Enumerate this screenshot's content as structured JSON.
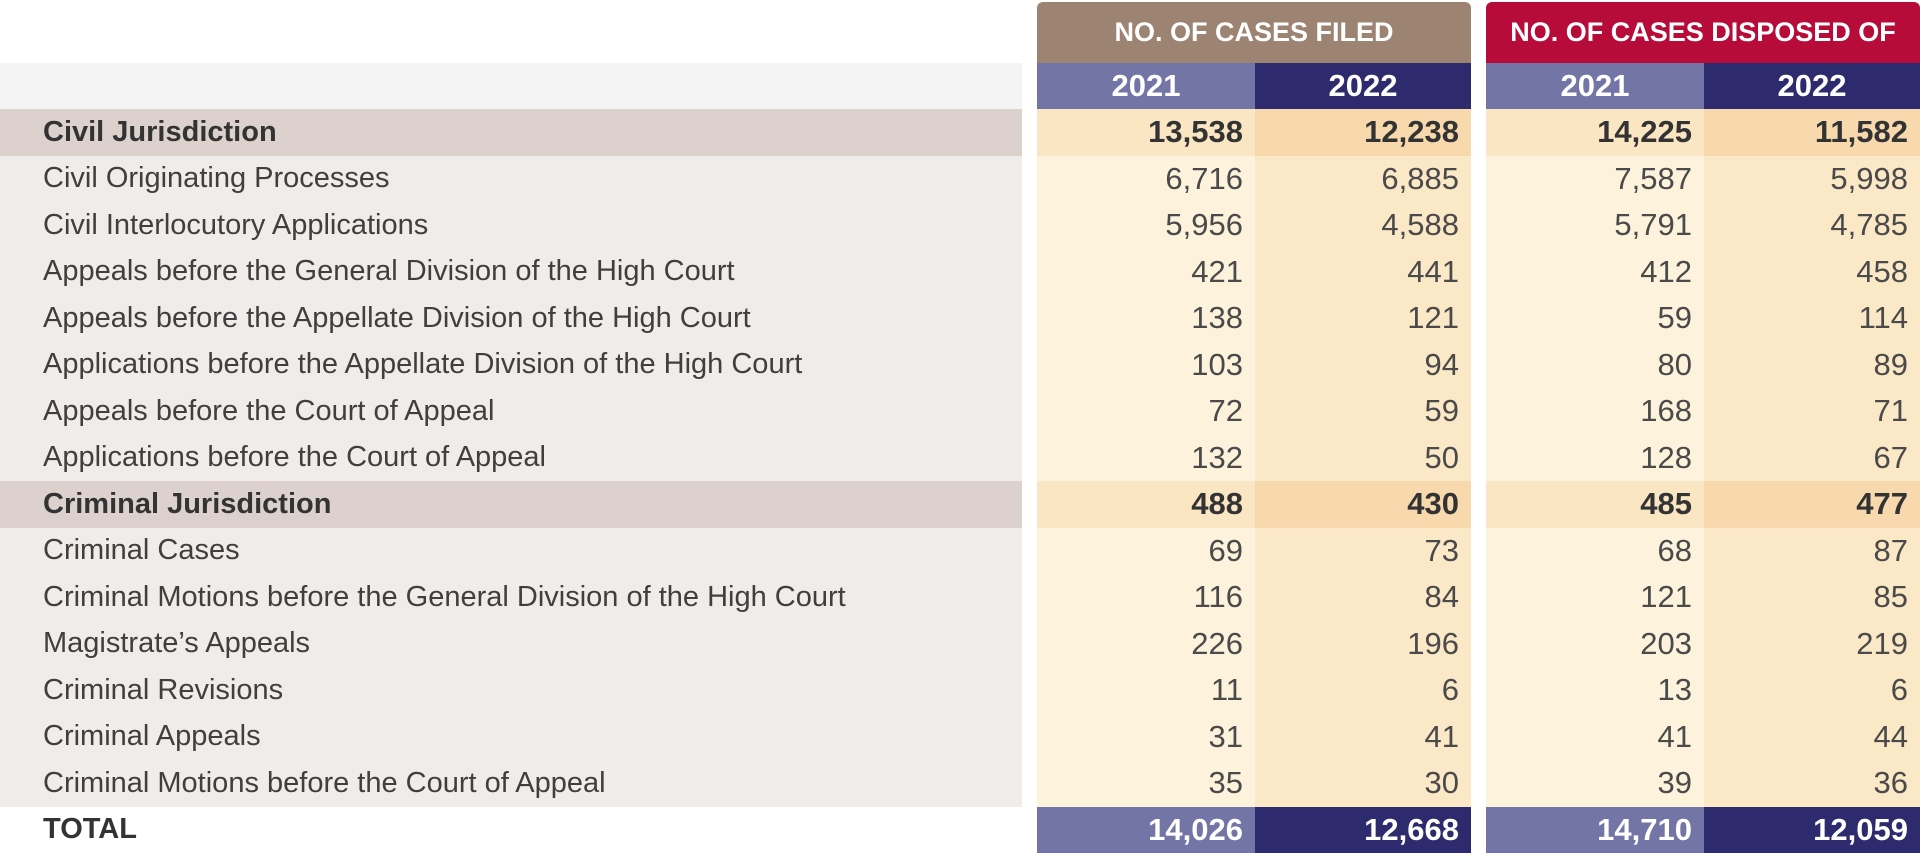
{
  "headers": {
    "filed": "NO. OF CASES FILED",
    "disposed": "NO. OF CASES DISPOSED OF",
    "years": [
      "2021",
      "2022"
    ]
  },
  "rows": [
    {
      "label": "Civil Jurisdiction",
      "filed_2021": "13,538",
      "filed_2022": "12,238",
      "disposed_2021": "14,225",
      "disposed_2022": "11,582"
    },
    {
      "label": "Civil Originating Processes",
      "filed_2021": "6,716",
      "filed_2022": "6,885",
      "disposed_2021": "7,587",
      "disposed_2022": "5,998"
    },
    {
      "label": "Civil Interlocutory Applications",
      "filed_2021": "5,956",
      "filed_2022": "4,588",
      "disposed_2021": "5,791",
      "disposed_2022": "4,785"
    },
    {
      "label": "Appeals before the General Division of the High Court",
      "filed_2021": "421",
      "filed_2022": "441",
      "disposed_2021": "412",
      "disposed_2022": "458"
    },
    {
      "label": "Appeals before the Appellate Division of the High Court",
      "filed_2021": "138",
      "filed_2022": "121",
      "disposed_2021": "59",
      "disposed_2022": "114"
    },
    {
      "label": "Applications before the Appellate Division of the High Court",
      "filed_2021": "103",
      "filed_2022": "94",
      "disposed_2021": "80",
      "disposed_2022": "89"
    },
    {
      "label": "Appeals before the Court of Appeal",
      "filed_2021": "72",
      "filed_2022": "59",
      "disposed_2021": "168",
      "disposed_2022": "71"
    },
    {
      "label": "Applications before the Court of Appeal",
      "filed_2021": "132",
      "filed_2022": "50",
      "disposed_2021": "128",
      "disposed_2022": "67"
    },
    {
      "label": "Criminal Jurisdiction",
      "filed_2021": "488",
      "filed_2022": "430",
      "disposed_2021": "485",
      "disposed_2022": "477"
    },
    {
      "label": "Criminal Cases",
      "filed_2021": "69",
      "filed_2022": "73",
      "disposed_2021": "68",
      "disposed_2022": "87"
    },
    {
      "label": "Criminal Motions before the General Division of the High Court",
      "filed_2021": "116",
      "filed_2022": "84",
      "disposed_2021": "121",
      "disposed_2022": "85"
    },
    {
      "label": "Magistrate’s Appeals",
      "filed_2021": "226",
      "filed_2022": "196",
      "disposed_2021": "203",
      "disposed_2022": "219"
    },
    {
      "label": "Criminal Revisions",
      "filed_2021": "11",
      "filed_2022": "6",
      "disposed_2021": "13",
      "disposed_2022": "6"
    },
    {
      "label": "Criminal Appeals",
      "filed_2021": "31",
      "filed_2022": "41",
      "disposed_2021": "41",
      "disposed_2022": "44"
    },
    {
      "label": "Criminal Motions before the Court of Appeal",
      "filed_2021": "35",
      "filed_2022": "30",
      "disposed_2021": "39",
      "disposed_2022": "36"
    },
    {
      "label": "TOTAL",
      "filed_2021": "14,026",
      "filed_2022": "12,668",
      "disposed_2021": "14,710",
      "disposed_2022": "12,059"
    }
  ],
  "colors": {
    "filed_header": "#9d8372",
    "disposed_header": "#b70b3a",
    "year_light": "#7375a7",
    "year_dark": "#2d2a6e"
  }
}
